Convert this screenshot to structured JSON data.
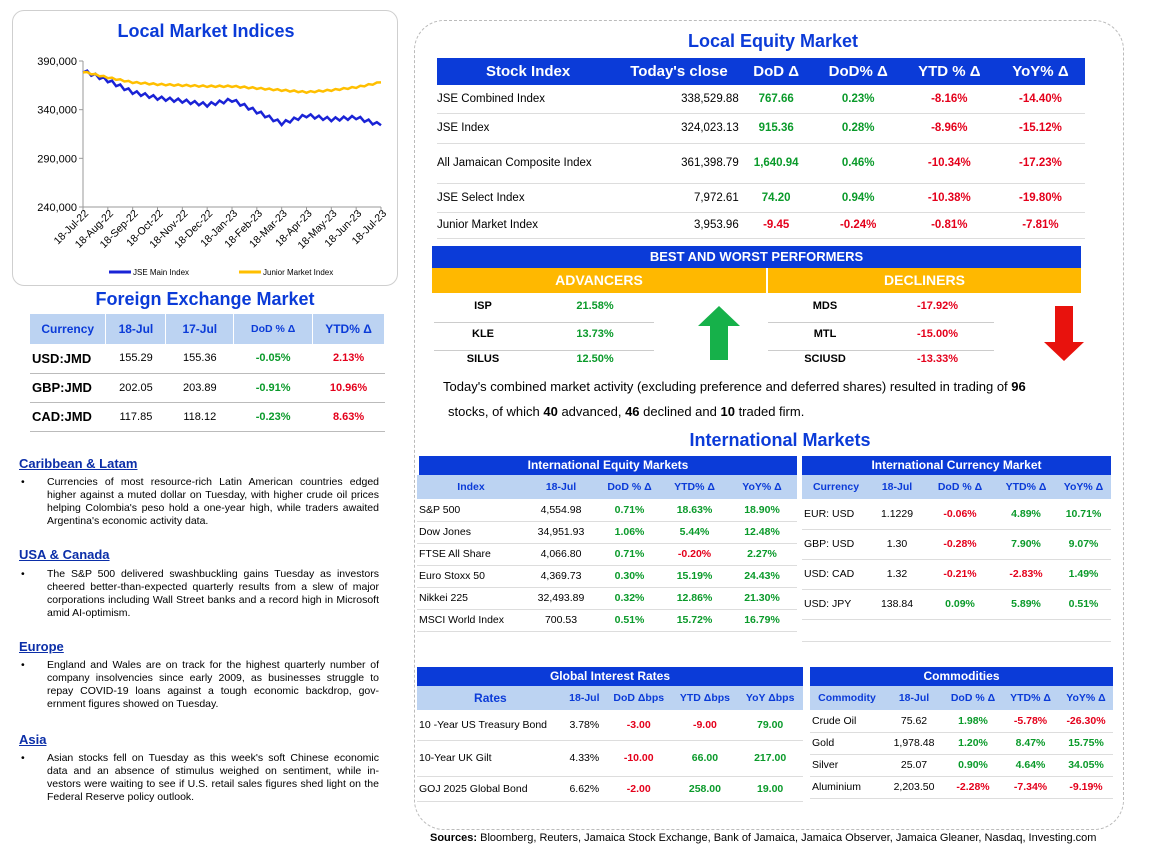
{
  "chart": {
    "title": "Local Market Indices",
    "chart_data": {
      "type": "line",
      "x": [
        "18-Jul-22",
        "18-Aug-22",
        "18-Sep-22",
        "18-Oct-22",
        "18-Nov-22",
        "18-Dec-22",
        "18-Jan-23",
        "18-Feb-23",
        "18-Mar-23",
        "18-Apr-23",
        "18-May-23",
        "18-Jun-23",
        "18-Jul-23"
      ],
      "ylim": [
        240000,
        390000
      ],
      "yticks": [
        "390,000",
        "340,000",
        "290,000",
        "240,000"
      ],
      "series": [
        {
          "name": "JSE Main Index",
          "color": "#1a23d6",
          "values": [
            380000,
            370000,
            358000,
            352000,
            349000,
            345000,
            350000,
            338000,
            326000,
            334000,
            330000,
            332000,
            324000
          ]
        },
        {
          "name": "Junior Market Index",
          "color": "#ffbf00",
          "values": [
            379000,
            373000,
            368000,
            366000,
            365000,
            364000,
            364000,
            362000,
            360000,
            358000,
            360000,
            363000,
            368000
          ]
        }
      ]
    }
  },
  "fx": {
    "title": "Foreign Exchange Market",
    "headers": [
      "Currency",
      "18-Jul",
      "17-Jul",
      "DoD % Δ",
      "YTD% Δ"
    ],
    "rows": [
      {
        "c": "USD:JMD",
        "a": "155.29",
        "b": "155.36",
        "d": "-0.05%",
        "y": "2.13%",
        "dc": "green",
        "yc": "red"
      },
      {
        "c": "GBP:JMD",
        "a": "202.05",
        "b": "203.89",
        "d": "-0.91%",
        "y": "10.96%",
        "dc": "green",
        "yc": "red"
      },
      {
        "c": "CAD:JMD",
        "a": "117.85",
        "b": "118.12",
        "d": "-0.23%",
        "y": "8.63%",
        "dc": "green",
        "yc": "red"
      }
    ]
  },
  "news": [
    {
      "h": "Caribbean & Latam",
      "t": "Currencies of most resource-rich Latin American countries edged higher against a muted dollar on Tuesday, with higher crude oil prices helping Colombia's peso hold a one-year high, while traders awaited Argentina's economic activity data."
    },
    {
      "h": "USA & Canada",
      "t": "The S&P 500 delivered swashbuckling gains Tuesday as investors cheered better-than-expected quarterly results from a slew of major corporations including Wall Street banks and a record high in Microsoft amid AI-optimism."
    },
    {
      "h": "Europe",
      "t": "England and Wales are on track for the highest quarterly number of company insolvencies since early 2009, as businesses struggle to repay COVID-19 loans against a tough economic backdrop, gov-ernment figures showed on Tuesday."
    },
    {
      "h": "Asia",
      "t": "Asian stocks fell on Tuesday as this week's soft Chinese economic data and an absence of stimulus weighed on sentiment, while in-vestors were waiting to see if U.S. retail sales figures shed light on the Federal Reserve policy outlook."
    }
  ],
  "equity": {
    "title": "Local Equity Market",
    "headers": [
      "Stock Index",
      "Today's close",
      "DoD  Δ",
      "DoD% Δ",
      "YTD % Δ",
      "YoY% Δ"
    ],
    "rows": [
      {
        "n": "JSE Combined Index",
        "c": "338,529.88",
        "d": "767.66",
        "p": "0.23%",
        "y": "-8.16%",
        "yy": "-14.40%",
        "dc": "green"
      },
      {
        "n": "JSE Index",
        "c": "324,023.13",
        "d": "915.36",
        "p": "0.28%",
        "y": "-8.96%",
        "yy": "-15.12%",
        "dc": "green"
      },
      {
        "n": "All Jamaican Composite Index",
        "c": "361,398.79",
        "d": "1,640.94",
        "p": "0.46%",
        "y": "-10.34%",
        "yy": "-17.23%",
        "dc": "green"
      },
      {
        "n": "JSE Select Index",
        "c": "7,972.61",
        "d": "74.20",
        "p": "0.94%",
        "y": "-10.38%",
        "yy": "-19.80%",
        "dc": "green"
      },
      {
        "n": "Junior Market Index",
        "c": "3,953.96",
        "d": "-9.45",
        "p": "-0.24%",
        "y": "-0.81%",
        "yy": "-7.81%",
        "dc": "red"
      }
    ]
  },
  "bw": {
    "title": "BEST AND WORST PERFORMERS",
    "adv_label": "ADVANCERS",
    "dec_label": "DECLINERS",
    "advancers": [
      {
        "s": "ISP",
        "v": "21.58%"
      },
      {
        "s": "KLE",
        "v": "13.73%"
      },
      {
        "s": "SILUS",
        "v": "12.50%"
      }
    ],
    "decliners": [
      {
        "s": "MDS",
        "v": "-17.92%"
      },
      {
        "s": "MTL",
        "v": "-15.00%"
      },
      {
        "s": "SCIUSD",
        "v": "-13.33%"
      }
    ]
  },
  "summary": {
    "p1": "Today's combined market activity (excluding preference and deferred shares) resulted in trading of ",
    "n1": "96",
    "p2": "stocks, of which ",
    "n2": "40",
    "p3": " advanced, ",
    "n3": "46",
    "p4": " declined and ",
    "n4": "10",
    "p5": " traded firm."
  },
  "intl": {
    "title": "International Markets",
    "eq_title": "International Equity Markets",
    "eq_headers": [
      "Index",
      "18-Jul",
      "DoD % Δ",
      "YTD% Δ",
      "YoY% Δ"
    ],
    "eq_rows": [
      {
        "n": "S&P 500",
        "v": "4,554.98",
        "d": "0.71%",
        "y": "18.63%",
        "yy": "18.90%",
        "yc": "green"
      },
      {
        "n": "Dow Jones",
        "v": "34,951.93",
        "d": "1.06%",
        "y": "5.44%",
        "yy": "12.48%",
        "yc": "green"
      },
      {
        "n": "FTSE All Share",
        "v": "4,066.80",
        "d": "0.71%",
        "y": "-0.20%",
        "yy": "2.27%",
        "yc": "red"
      },
      {
        "n": "Euro Stoxx 50",
        "v": "4,369.73",
        "d": "0.30%",
        "y": "15.19%",
        "yy": "24.43%",
        "yc": "green"
      },
      {
        "n": "Nikkei 225",
        "v": "32,493.89",
        "d": "0.32%",
        "y": "12.86%",
        "yy": "21.30%",
        "yc": "green"
      },
      {
        "n": "MSCI World Index",
        "v": "700.53",
        "d": "0.51%",
        "y": "15.72%",
        "yy": "16.79%",
        "yc": "green"
      }
    ],
    "cur_title": "International Currency Market",
    "cur_headers": [
      "Currency",
      "18-Jul",
      "DoD % Δ",
      "YTD% Δ",
      "YoY% Δ"
    ],
    "cur_rows": [
      {
        "n": "EUR: USD",
        "v": "1.1229",
        "d": "-0.06%",
        "y": "4.89%",
        "yy": "10.71%",
        "dc": "red",
        "yc": "green"
      },
      {
        "n": "GBP: USD",
        "v": "1.30",
        "d": "-0.28%",
        "y": "7.90%",
        "yy": "9.07%",
        "dc": "red",
        "yc": "green"
      },
      {
        "n": "USD: CAD",
        "v": "1.32",
        "d": "-0.21%",
        "y": "-2.83%",
        "yy": "1.49%",
        "dc": "red",
        "yc": "red"
      },
      {
        "n": "USD: JPY",
        "v": "138.84",
        "d": "0.09%",
        "y": "5.89%",
        "yy": "0.51%",
        "dc": "green",
        "yc": "green"
      }
    ],
    "rates_title": "Global Interest Rates",
    "rates_headers": [
      "Rates",
      "18-Jul",
      "DoD Δbps",
      "YTD Δbps",
      "YoY Δbps"
    ],
    "rates_rows": [
      {
        "n": "10 -Year US Treasury Bond",
        "v": "3.78%",
        "d": "-3.00",
        "y": "-9.00",
        "yy": "79.00",
        "yc": "red"
      },
      {
        "n": "10-Year UK Gilt",
        "v": "4.33%",
        "d": "-10.00",
        "y": "66.00",
        "yy": "217.00",
        "yc": "green"
      },
      {
        "n": "GOJ 2025 Global Bond",
        "v": "6.62%",
        "d": "-2.00",
        "y": "258.00",
        "yy": "19.00",
        "yc": "green"
      }
    ],
    "com_title": "Commodities",
    "com_headers": [
      "Commodity",
      "18-Jul",
      "DoD % Δ",
      "YTD% Δ",
      "YoY% Δ"
    ],
    "com_rows": [
      {
        "n": "Crude Oil",
        "v": "75.62",
        "d": "1.98%",
        "y": "-5.78%",
        "yy": "-26.30%",
        "dc": "green",
        "yc": "red",
        "yyc": "red"
      },
      {
        "n": "Gold",
        "v": "1,978.48",
        "d": "1.20%",
        "y": "8.47%",
        "yy": "15.75%",
        "dc": "green",
        "yc": "green",
        "yyc": "green"
      },
      {
        "n": "Silver",
        "v": "25.07",
        "d": "0.90%",
        "y": "4.64%",
        "yy": "34.05%",
        "dc": "green",
        "yc": "green",
        "yyc": "green"
      },
      {
        "n": "Aluminium",
        "v": "2,203.50",
        "d": "-2.28%",
        "y": "-7.34%",
        "yy": "-9.19%",
        "dc": "red",
        "yc": "red",
        "yyc": "red"
      }
    ]
  },
  "sources_label": "Sources:",
  "sources": " Bloomberg, Reuters, Jamaica Stock Exchange, Bank of Jamaica, Jamaica Observer, Jamaica Gleaner, Nasdaq, Investing.com"
}
